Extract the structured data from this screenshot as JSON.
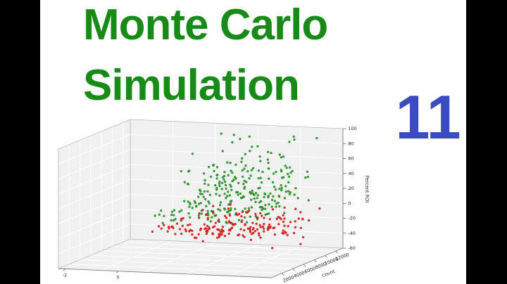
{
  "page": {
    "background": "#ffffff",
    "letterbox_bar_color": "#000000"
  },
  "title": {
    "line1": "Monte Carlo",
    "line2": "Simulation",
    "color": "#188a18"
  },
  "badge": {
    "number": "11",
    "color": "#3b4cc0"
  },
  "chart_data": {
    "type": "scatter",
    "projection": "3d",
    "title": "",
    "xlabel": "count",
    "ylabel": "",
    "zlabel": "Percent ROI",
    "x_ticks": [
      2000,
      4000,
      6000,
      8000,
      10000,
      12000
    ],
    "y_ticks": [
      -2,
      0
    ],
    "z_ticks": [
      100,
      80,
      60,
      40,
      20,
      0,
      -20,
      -40,
      -60
    ],
    "zlim": [
      -60,
      100
    ],
    "grid": true,
    "pane_color": "#f1f1f1",
    "grid_color": "#ffffff",
    "tick_label_color": "#222222",
    "axis_label_color": "#333333",
    "seed": 42,
    "series": [
      {
        "name": "positive-roi-outcomes",
        "color": "#2a9a2a",
        "count": 280,
        "side": "above"
      },
      {
        "name": "negative-roi-outcomes",
        "color": "#e02020",
        "count": 180,
        "side": "below"
      }
    ],
    "description": "Monte Carlo simulation outcomes: spread of Percent ROI widens as bet count increases; green points cluster above 0% ROI, red points below, fanning out toward higher counts."
  }
}
